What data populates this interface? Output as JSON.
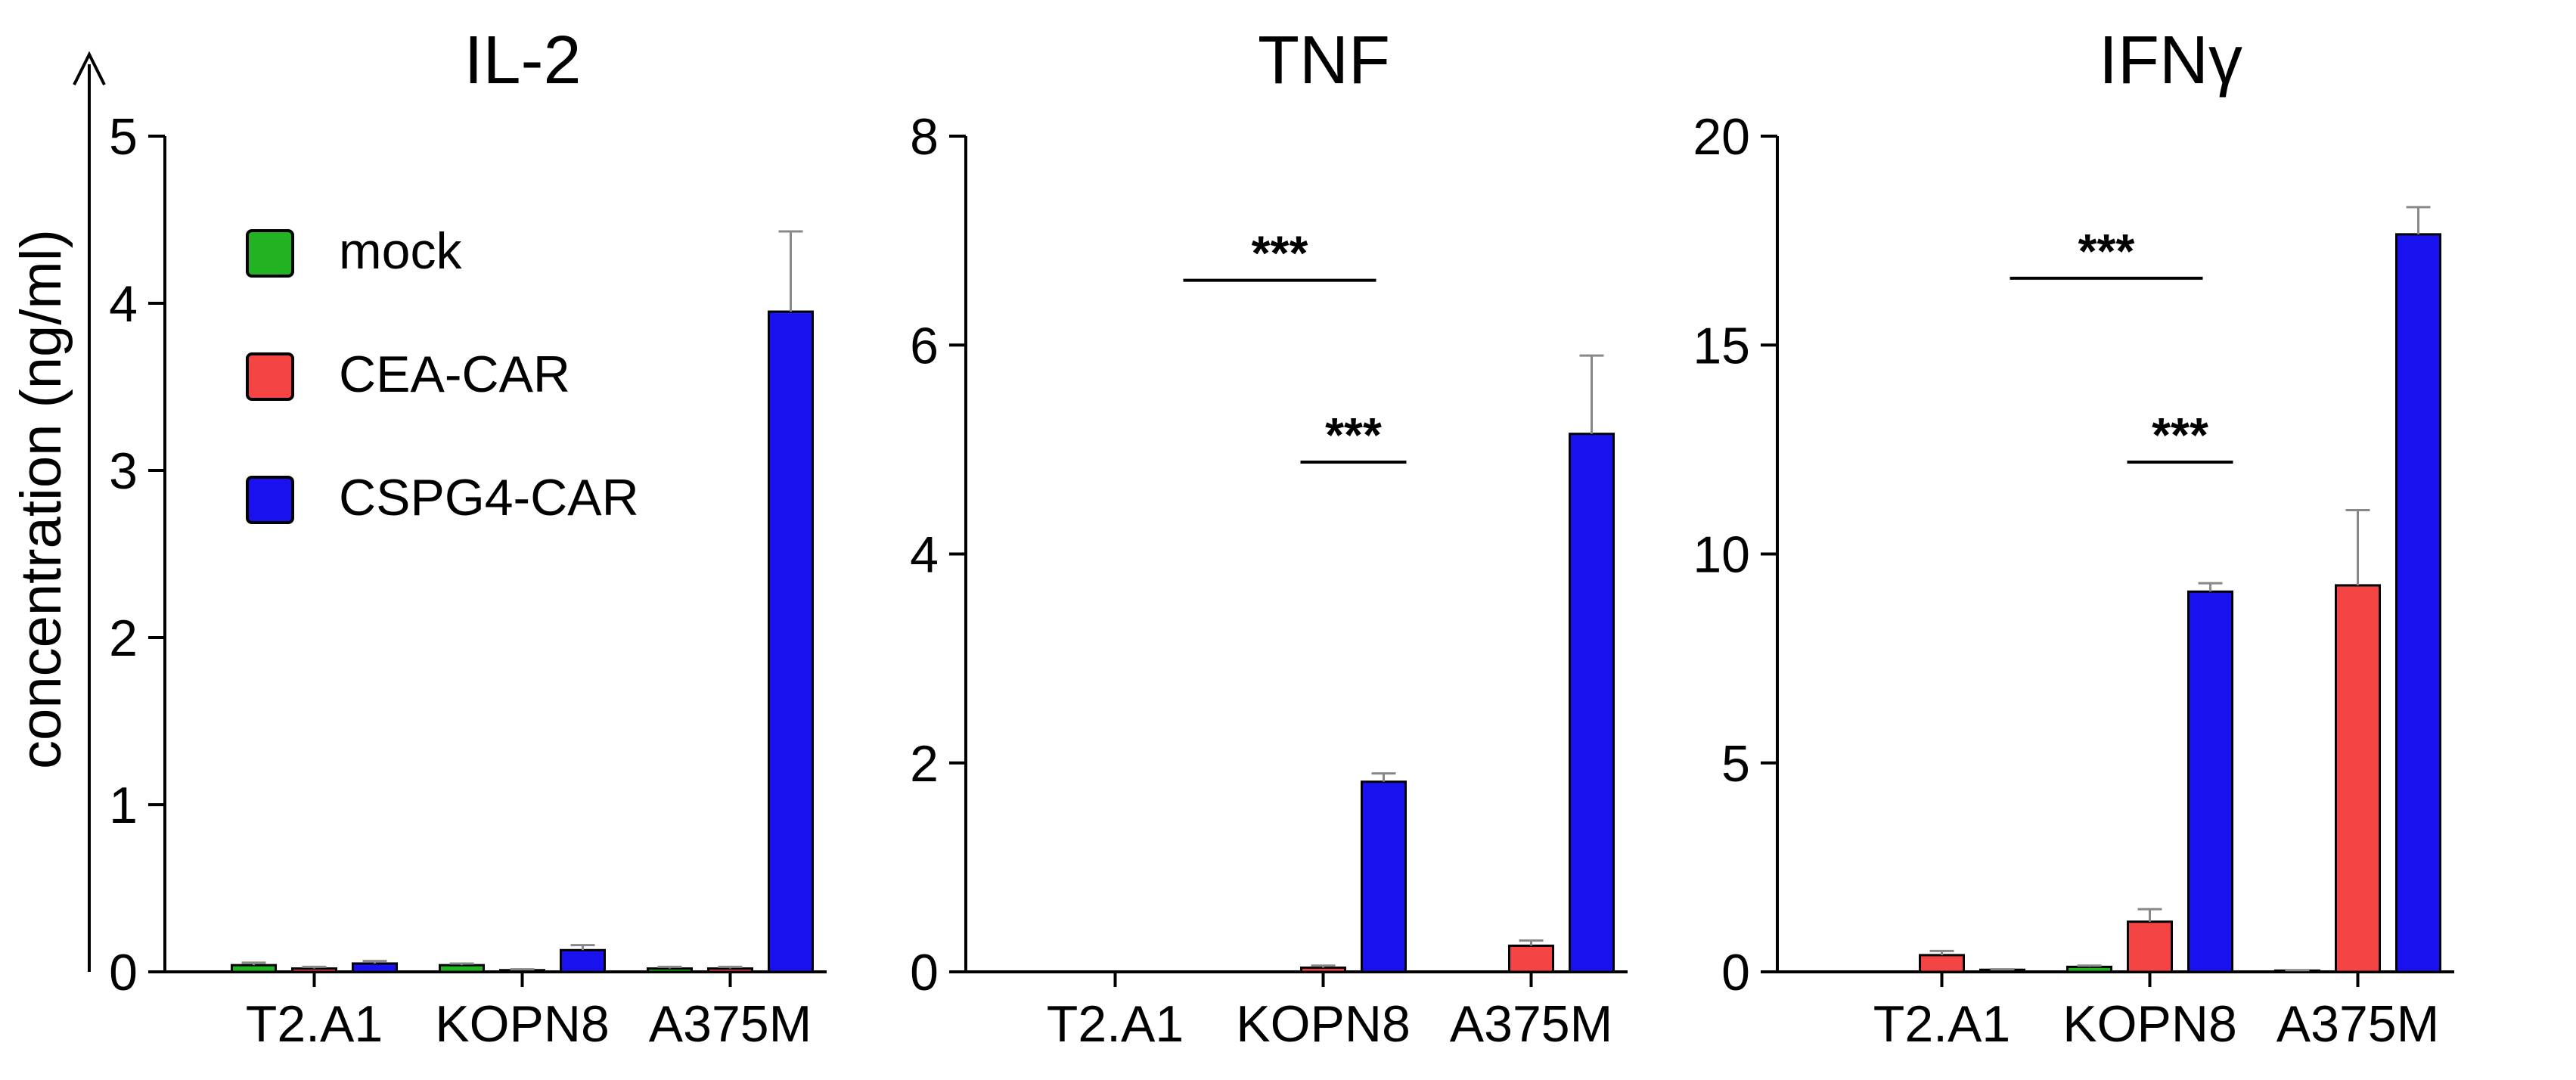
{
  "colors": {
    "mock": "#21b321",
    "cea": "#f44444",
    "cspg4": "#1a12ee",
    "axis": "#000000",
    "error": "#888888"
  },
  "ylabel": "concentration (ng/ml)",
  "legend": [
    {
      "name": "mock",
      "color": "#21b321"
    },
    {
      "name": "CEA-CAR",
      "color": "#f44444"
    },
    {
      "name": "CSPG4-CAR",
      "color": "#1a12ee"
    }
  ],
  "chart_data": [
    {
      "type": "bar",
      "title": "IL-2",
      "categories": [
        "T2.A1",
        "KOPN8",
        "A375M"
      ],
      "ylim": [
        0,
        5
      ],
      "yticks": [
        0,
        1,
        2,
        3,
        4,
        5
      ],
      "series": [
        {
          "name": "mock",
          "values": [
            0.04,
            0.04,
            0.02
          ],
          "errors": [
            0.015,
            0.01,
            0.01
          ]
        },
        {
          "name": "CEA-CAR",
          "values": [
            0.02,
            0.01,
            0.02
          ],
          "errors": [
            0.01,
            0.005,
            0.01
          ]
        },
        {
          "name": "CSPG4-CAR",
          "values": [
            0.05,
            0.13,
            3.95
          ],
          "errors": [
            0.015,
            0.03,
            0.48
          ]
        }
      ],
      "significance": []
    },
    {
      "type": "bar",
      "title": "TNF",
      "categories": [
        "T2.A1",
        "KOPN8",
        "A375M"
      ],
      "ylim": [
        0,
        8
      ],
      "yticks": [
        0,
        2,
        4,
        6,
        8
      ],
      "series": [
        {
          "name": "mock",
          "values": [
            0,
            0,
            0
          ],
          "errors": [
            0,
            0,
            0
          ]
        },
        {
          "name": "CEA-CAR",
          "values": [
            0,
            0.04,
            0.25
          ],
          "errors": [
            0,
            0.02,
            0.05
          ]
        },
        {
          "name": "CSPG4-CAR",
          "values": [
            0,
            1.82,
            5.15
          ],
          "errors": [
            0,
            0.08,
            0.75
          ]
        }
      ],
      "significance": [
        {
          "label": "***",
          "from": [
            0,
            2
          ],
          "to": [
            1,
            2
          ],
          "y": 6.62
        },
        {
          "label": "***",
          "from": [
            1,
            1
          ],
          "to": [
            1,
            2
          ],
          "y": 4.88
        }
      ]
    },
    {
      "type": "bar",
      "title": "IFNγ",
      "categories": [
        "T2.A1",
        "KOPN8",
        "A375M"
      ],
      "ylim": [
        0,
        20
      ],
      "yticks": [
        0,
        5,
        10,
        15,
        20
      ],
      "series": [
        {
          "name": "mock",
          "values": [
            0,
            0.12,
            0.03
          ],
          "errors": [
            0,
            0.03,
            0.01
          ]
        },
        {
          "name": "CEA-CAR",
          "values": [
            0.4,
            1.2,
            9.25
          ],
          "errors": [
            0.1,
            0.3,
            1.8
          ]
        },
        {
          "name": "CSPG4-CAR",
          "values": [
            0.05,
            9.1,
            17.65
          ],
          "errors": [
            0.01,
            0.2,
            0.65
          ]
        }
      ],
      "significance": [
        {
          "label": "***",
          "from": [
            0,
            2
          ],
          "to": [
            1,
            2
          ],
          "y": 16.6
        },
        {
          "label": "***",
          "from": [
            1,
            1
          ],
          "to": [
            1,
            2
          ],
          "y": 12.2
        }
      ]
    }
  ]
}
